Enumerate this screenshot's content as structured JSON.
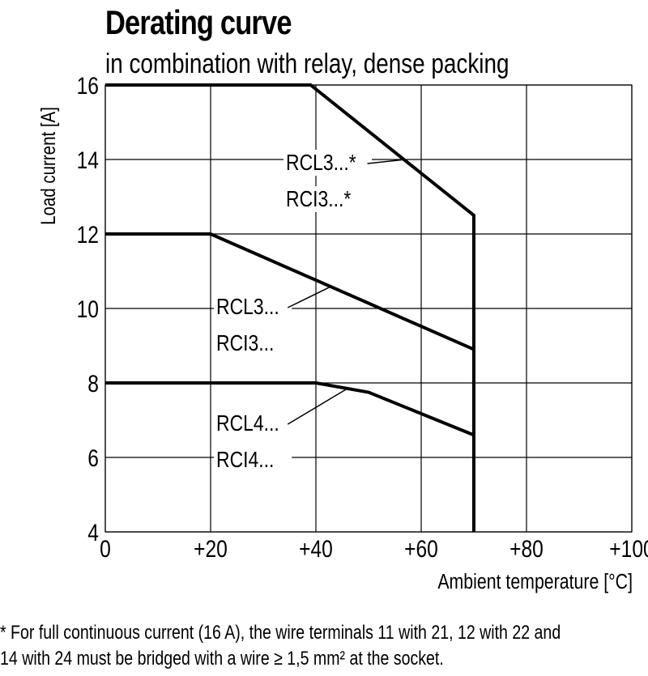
{
  "chart_data": {
    "type": "line",
    "title": "Derating curve",
    "subtitle": "in combination with relay, dense packing",
    "xlabel": "Ambient temperature [°C]",
    "ylabel": "Load current [A]",
    "xlim": [
      0,
      100
    ],
    "ylim": [
      4,
      16
    ],
    "x_ticks": [
      0,
      20,
      40,
      60,
      80,
      100
    ],
    "x_tick_labels": [
      "0",
      "+20",
      "+40",
      "+60",
      "+80",
      "+100"
    ],
    "y_ticks": [
      4,
      6,
      8,
      10,
      12,
      14,
      16
    ],
    "y_tick_labels": [
      "4",
      "6",
      "8",
      "10",
      "12",
      "14",
      "16"
    ],
    "grid": true,
    "series": [
      {
        "name": "RCL3...* RCI3...*",
        "x": [
          0,
          39,
          70,
          70
        ],
        "y": [
          16,
          16,
          12.5,
          4
        ]
      },
      {
        "name": "RCL3... RCI3...",
        "x": [
          0,
          20,
          70
        ],
        "y": [
          12,
          12,
          8.9
        ]
      },
      {
        "name": "RCL4... RCI4...",
        "x": [
          0,
          40,
          50,
          70
        ],
        "y": [
          8,
          8,
          7.75,
          6.6
        ]
      }
    ],
    "annotations": [
      {
        "lines": [
          "RCL3...*",
          "RCI3...*"
        ],
        "points_to": [
          57,
          14
        ]
      },
      {
        "lines": [
          "RCL3...",
          "RCI3..."
        ],
        "points_to": [
          43,
          10.6
        ]
      },
      {
        "lines": [
          "RCL4...",
          "RCI4..."
        ],
        "points_to": [
          46,
          7.85
        ]
      }
    ]
  },
  "footnote": {
    "line1": "* For full continuous current (16 A), the wire terminals 11 with 21, 12 with 22 and",
    "line2": "14 with 24 must be bridged with a wire ≥ 1,5 mm² at the socket."
  },
  "colors": {
    "line": "#000000",
    "grid": "#000000",
    "background": "#ffffff"
  }
}
